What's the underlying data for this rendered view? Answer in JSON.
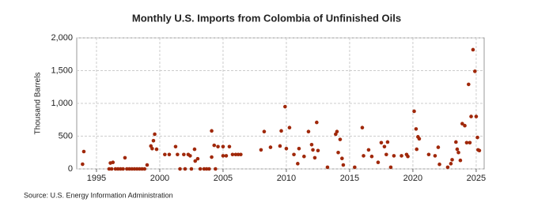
{
  "chart_data": {
    "type": "scatter",
    "title": "Monthly U.S. Imports from Colombia of Unfinished Oils",
    "y_label": "Thousand Barrels",
    "source": "Source: U.S. Energy Information Administration",
    "color": "#a0280a",
    "grid": true,
    "xlim": [
      1993.44,
      2025.63
    ],
    "ylim": [
      0,
      2000
    ],
    "xticks": [
      1995,
      2000,
      2005,
      2010,
      2015,
      2020,
      2025
    ],
    "yticks": [
      0,
      500,
      {
        "value": 1000,
        "label": "1,000"
      },
      {
        "value": 1500,
        "label": "1,500"
      },
      {
        "value": 2000,
        "label": "2,000"
      }
    ],
    "x": [
      1993.9,
      1994.0,
      1996.0,
      1996.1,
      1996.2,
      1996.3,
      1996.5,
      1996.7,
      1996.9,
      1997.1,
      1997.25,
      1997.4,
      1997.6,
      1997.8,
      1998.0,
      1998.2,
      1998.4,
      1998.6,
      1998.8,
      1999.0,
      1999.3,
      1999.4,
      1999.5,
      1999.6,
      1999.75,
      2000.4,
      2000.75,
      2001.25,
      2001.4,
      2001.6,
      2001.9,
      2002.0,
      2002.25,
      2002.4,
      2002.5,
      2002.75,
      2002.8,
      2003.0,
      2003.2,
      2003.5,
      2003.7,
      2003.9,
      2004.1,
      2004.1,
      2004.3,
      2004.4,
      2004.6,
      2005.0,
      2005.0,
      2005.25,
      2005.5,
      2005.75,
      2006.0,
      2006.2,
      2006.4,
      2008.0,
      2008.25,
      2008.75,
      2009.5,
      2009.6,
      2009.9,
      2010.0,
      2010.25,
      2010.6,
      2010.9,
      2011.0,
      2011.4,
      2011.75,
      2012.0,
      2012.1,
      2012.25,
      2012.4,
      2012.5,
      2013.25,
      2013.9,
      2014.0,
      2014.1,
      2014.25,
      2014.4,
      2014.5,
      2015.4,
      2016.0,
      2016.1,
      2016.5,
      2016.75,
      2017.25,
      2017.5,
      2017.75,
      2017.9,
      2018.0,
      2018.25,
      2018.5,
      2019.1,
      2019.5,
      2019.6,
      2020.1,
      2020.25,
      2020.3,
      2020.4,
      2020.5,
      2021.25,
      2021.75,
      2022.0,
      2022.1,
      2022.75,
      2023.0,
      2023.1,
      2023.4,
      2023.5,
      2023.6,
      2023.75,
      2023.9,
      2024.1,
      2024.25,
      2024.4,
      2024.5,
      2024.6,
      2024.75,
      2024.9,
      2025.0,
      2025.1,
      2025.15,
      2025.25
    ],
    "values": [
      72,
      265,
      0,
      90,
      0,
      100,
      0,
      0,
      0,
      0,
      170,
      0,
      0,
      0,
      0,
      0,
      0,
      0,
      0,
      60,
      350,
      310,
      430,
      530,
      300,
      220,
      220,
      340,
      220,
      0,
      220,
      0,
      220,
      200,
      0,
      300,
      120,
      155,
      0,
      0,
      0,
      0,
      580,
      180,
      360,
      0,
      340,
      340,
      200,
      200,
      340,
      220,
      220,
      220,
      220,
      290,
      570,
      330,
      350,
      580,
      950,
      310,
      630,
      220,
      80,
      310,
      190,
      570,
      370,
      290,
      170,
      710,
      280,
      25,
      530,
      570,
      250,
      450,
      160,
      60,
      25,
      630,
      200,
      290,
      190,
      100,
      400,
      340,
      220,
      410,
      25,
      200,
      200,
      220,
      190,
      880,
      610,
      300,
      490,
      460,
      220,
      200,
      330,
      70,
      25,
      80,
      140,
      410,
      300,
      250,
      130,
      690,
      660,
      400,
      1290,
      400,
      800,
      1820,
      1490,
      800,
      480,
      290,
      280
    ]
  }
}
